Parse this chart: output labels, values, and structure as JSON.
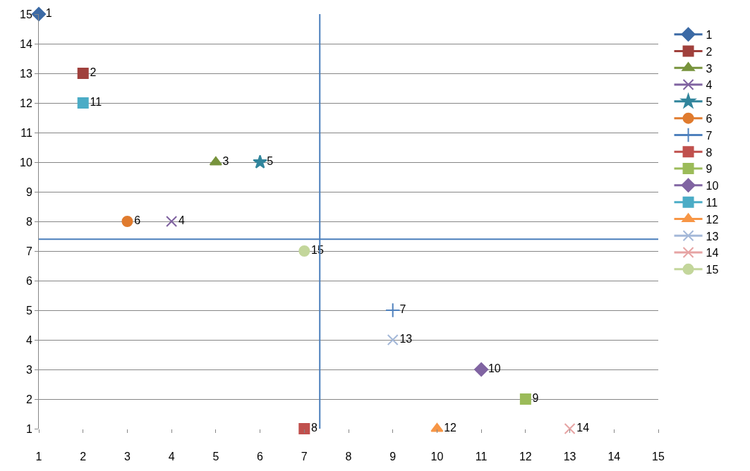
{
  "chart_data": {
    "type": "scatter",
    "xlim": [
      1,
      15
    ],
    "ylim": [
      1,
      15
    ],
    "xticks": [
      1,
      2,
      3,
      4,
      5,
      6,
      7,
      8,
      9,
      10,
      11,
      12,
      13,
      14,
      15
    ],
    "yticks": [
      1,
      2,
      3,
      4,
      5,
      6,
      7,
      8,
      9,
      10,
      11,
      12,
      13,
      14,
      15
    ],
    "grid": "y",
    "legend": "right",
    "ref_lines": [
      {
        "axis": "x",
        "value": 7.35,
        "color": "#4a7ebb"
      },
      {
        "axis": "y",
        "value": 7.4,
        "color": "#4a7ebb"
      }
    ],
    "series": [
      {
        "name": "1",
        "color": "#3c6aa5",
        "marker": "diamond",
        "x": [
          1
        ],
        "values": [
          15
        ]
      },
      {
        "name": "2",
        "color": "#a0403c",
        "marker": "square",
        "x": [
          2
        ],
        "values": [
          13
        ]
      },
      {
        "name": "3",
        "color": "#77933c",
        "marker": "triangle",
        "x": [
          5
        ],
        "values": [
          10
        ]
      },
      {
        "name": "4",
        "color": "#7f62a0",
        "marker": "x",
        "x": [
          4
        ],
        "values": [
          8
        ]
      },
      {
        "name": "5",
        "color": "#31859c",
        "marker": "star",
        "x": [
          6
        ],
        "values": [
          10
        ]
      },
      {
        "name": "6",
        "color": "#e07b2e",
        "marker": "circle",
        "x": [
          3
        ],
        "values": [
          8
        ]
      },
      {
        "name": "7",
        "color": "#4f81bd",
        "marker": "cross",
        "x": [
          9
        ],
        "values": [
          5
        ]
      },
      {
        "name": "8",
        "color": "#c0504d",
        "marker": "square",
        "x": [
          7
        ],
        "values": [
          1
        ]
      },
      {
        "name": "9",
        "color": "#9bbb59",
        "marker": "square",
        "x": [
          12
        ],
        "values": [
          2
        ]
      },
      {
        "name": "10",
        "color": "#8064a2",
        "marker": "diamond",
        "x": [
          11
        ],
        "values": [
          3
        ]
      },
      {
        "name": "11",
        "color": "#4bacc6",
        "marker": "square",
        "x": [
          2
        ],
        "values": [
          12
        ]
      },
      {
        "name": "12",
        "color": "#f79646",
        "marker": "triangle",
        "x": [
          10
        ],
        "values": [
          1
        ]
      },
      {
        "name": "13",
        "color": "#a4b8d8",
        "marker": "x",
        "x": [
          9
        ],
        "values": [
          4
        ]
      },
      {
        "name": "14",
        "color": "#e6a3a3",
        "marker": "x",
        "x": [
          13
        ],
        "values": [
          1
        ]
      },
      {
        "name": "15",
        "color": "#c3d69b",
        "marker": "circle",
        "x": [
          7
        ],
        "values": [
          7
        ]
      }
    ]
  }
}
